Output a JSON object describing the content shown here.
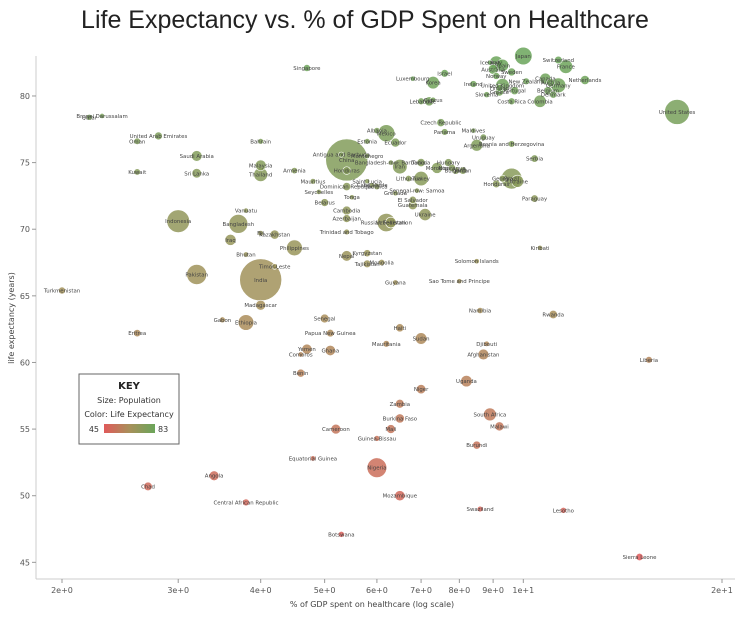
{
  "chart_data": {
    "type": "scatter",
    "title": "Life Expectancy vs. % of GDP Spent on Healthcare",
    "xlabel": "% of GDP spent on healthcare (log scale)",
    "ylabel": "life expectancy (years)",
    "xscale": "log",
    "xlim": [
      2,
      20
    ],
    "ylim": [
      44.5,
      83
    ],
    "x_ticks": [
      {
        "v": 2,
        "label": "2e+0"
      },
      {
        "v": 3,
        "label": "3e+0"
      },
      {
        "v": 4,
        "label": "4e+0"
      },
      {
        "v": 5,
        "label": "5e+0"
      },
      {
        "v": 6,
        "label": "6e+0"
      },
      {
        "v": 7,
        "label": "7e+0"
      },
      {
        "v": 8,
        "label": "8e+0"
      },
      {
        "v": 9,
        "label": "9e+0"
      },
      {
        "v": 10,
        "label": "1e+1"
      },
      {
        "v": 20,
        "label": "2e+1"
      }
    ],
    "y_ticks": [
      45,
      50,
      55,
      60,
      65,
      70,
      75,
      80
    ],
    "grid": false,
    "key": {
      "title": "KEY",
      "size_text": "Size: Population",
      "color_text": "Color: Life Expectancy",
      "min_label": "45",
      "max_label": "83",
      "color_low": "#e05a5a",
      "color_high": "#6aa55a"
    },
    "colors": {
      "low": "#e05a5a",
      "mid": "#a8905a",
      "high": "#6aa55a"
    },
    "points": [
      {
        "label": "Japan",
        "x": 10.0,
        "y": 83.0,
        "pop": 128
      },
      {
        "label": "Switzerland",
        "x": 11.3,
        "y": 82.7,
        "pop": 8
      },
      {
        "label": "Italy",
        "x": 9.1,
        "y": 82.5,
        "pop": 60
      },
      {
        "label": "Spain",
        "x": 9.3,
        "y": 82.3,
        "pop": 47
      },
      {
        "label": "Iceland",
        "x": 8.9,
        "y": 82.5,
        "pop": 0.3
      },
      {
        "label": "France",
        "x": 11.6,
        "y": 82.2,
        "pop": 65
      },
      {
        "label": "Singapore",
        "x": 4.7,
        "y": 82.1,
        "pop": 5
      },
      {
        "label": "Australia",
        "x": 9.0,
        "y": 82.0,
        "pop": 22
      },
      {
        "label": "Sweden",
        "x": 9.6,
        "y": 81.8,
        "pop": 9.5
      },
      {
        "label": "Israel",
        "x": 7.6,
        "y": 81.7,
        "pop": 8
      },
      {
        "label": "Norway",
        "x": 9.1,
        "y": 81.5,
        "pop": 5
      },
      {
        "label": "Canada",
        "x": 10.8,
        "y": 81.3,
        "pop": 34
      },
      {
        "label": "Netherlands",
        "x": 12.4,
        "y": 81.2,
        "pop": 17
      },
      {
        "label": "Luxembourg",
        "x": 6.8,
        "y": 81.3,
        "pop": 0.5
      },
      {
        "label": "Austria",
        "x": 11.0,
        "y": 81.0,
        "pop": 8.4
      },
      {
        "label": "New Zealand",
        "x": 10.1,
        "y": 81.1,
        "pop": 4.4
      },
      {
        "label": "Korea",
        "x": 7.3,
        "y": 81.0,
        "pop": 50
      },
      {
        "label": "Ireland",
        "x": 8.4,
        "y": 80.9,
        "pop": 4.6
      },
      {
        "label": "Germany",
        "x": 11.3,
        "y": 80.8,
        "pop": 81
      },
      {
        "label": "United Kingdom",
        "x": 9.3,
        "y": 80.8,
        "pop": 63
      },
      {
        "label": "Finland",
        "x": 9.2,
        "y": 80.6,
        "pop": 5.4
      },
      {
        "label": "Portugal",
        "x": 9.7,
        "y": 80.4,
        "pop": 10.5
      },
      {
        "label": "Belgium",
        "x": 10.9,
        "y": 80.4,
        "pop": 11
      },
      {
        "label": "Greece",
        "x": 9.2,
        "y": 80.3,
        "pop": 11
      },
      {
        "label": "Slovenia",
        "x": 8.8,
        "y": 80.1,
        "pop": 2
      },
      {
        "label": "Denmark",
        "x": 11.1,
        "y": 80.1,
        "pop": 5.6
      },
      {
        "label": "Cyprus",
        "x": 7.3,
        "y": 79.7,
        "pop": 1.1
      },
      {
        "label": "Lebanon",
        "x": 7.0,
        "y": 79.6,
        "pop": 4.4
      },
      {
        "label": "Chile",
        "x": 7.2,
        "y": 79.6,
        "pop": 17
      },
      {
        "label": "Costa Rica",
        "x": 9.6,
        "y": 79.6,
        "pop": 4.8
      },
      {
        "label": "Colombia",
        "x": 10.6,
        "y": 79.6,
        "pop": 47
      },
      {
        "label": "United States",
        "x": 17.1,
        "y": 78.8,
        "pop": 316
      },
      {
        "label": "Brunei Darussalam",
        "x": 2.3,
        "y": 78.5,
        "pop": 0.4
      },
      {
        "label": "Czech Republic",
        "x": 7.5,
        "y": 78.0,
        "pop": 10.5
      },
      {
        "label": "Qatar",
        "x": 2.2,
        "y": 78.4,
        "pop": 2
      },
      {
        "label": "Panama",
        "x": 7.6,
        "y": 77.3,
        "pop": 3.9
      },
      {
        "label": "Maldives",
        "x": 8.4,
        "y": 77.4,
        "pop": 0.3
      },
      {
        "label": "Albania",
        "x": 6.0,
        "y": 77.4,
        "pop": 2.8
      },
      {
        "label": "Mexico",
        "x": 6.2,
        "y": 77.2,
        "pop": 120
      },
      {
        "label": "Uruguay",
        "x": 8.7,
        "y": 76.9,
        "pop": 3.4
      },
      {
        "label": "Ecuador",
        "x": 6.4,
        "y": 76.5,
        "pop": 15.5
      },
      {
        "label": "Estonia",
        "x": 5.8,
        "y": 76.6,
        "pop": 1.3
      },
      {
        "label": "United Arab Emirates",
        "x": 2.8,
        "y": 77.0,
        "pop": 9
      },
      {
        "label": "Oman",
        "x": 2.6,
        "y": 76.6,
        "pop": 3.6
      },
      {
        "label": "Bahrain",
        "x": 4.0,
        "y": 76.6,
        "pop": 1.3
      },
      {
        "label": "Argentina",
        "x": 8.5,
        "y": 76.3,
        "pop": 41
      },
      {
        "label": "Bosnia and Herzegovina",
        "x": 9.6,
        "y": 76.4,
        "pop": 3.8
      },
      {
        "label": "Antigua and Barbuda",
        "x": 5.3,
        "y": 75.6,
        "pop": 0.1
      },
      {
        "label": "Montenegro",
        "x": 5.8,
        "y": 75.5,
        "pop": 0.6
      },
      {
        "label": "China",
        "x": 5.4,
        "y": 75.2,
        "pop": 1357
      },
      {
        "label": "Saudi Arabia",
        "x": 3.2,
        "y": 75.5,
        "pop": 29
      },
      {
        "label": "Serbia",
        "x": 10.4,
        "y": 75.3,
        "pop": 7.2
      },
      {
        "label": "Bangladesh-row: Barbados",
        "x": 6.3,
        "y": 75.0,
        "pop": 0.3
      },
      {
        "label": "Tunisia",
        "x": 7.0,
        "y": 75.0,
        "pop": 10.9
      },
      {
        "label": "Hungary",
        "x": 7.7,
        "y": 75.0,
        "pop": 9.9
      },
      {
        "label": "Malaysia",
        "x": 4.0,
        "y": 74.8,
        "pop": 29.7
      },
      {
        "label": "Iran",
        "x": 6.5,
        "y": 74.7,
        "pop": 77
      },
      {
        "label": "Morocco",
        "x": 7.4,
        "y": 74.6,
        "pop": 33
      },
      {
        "label": "Nicaragua",
        "x": 7.8,
        "y": 74.6,
        "pop": 6
      },
      {
        "label": "Bulgaria",
        "x": 7.9,
        "y": 74.4,
        "pop": 7.3
      },
      {
        "label": "Jordan",
        "x": 8.1,
        "y": 74.4,
        "pop": 6.5
      },
      {
        "label": "Armenia",
        "x": 4.5,
        "y": 74.4,
        "pop": 3
      },
      {
        "label": "Honduras",
        "x": 5.4,
        "y": 74.4,
        "pop": 8
      },
      {
        "label": "Kuwait",
        "x": 2.6,
        "y": 74.3,
        "pop": 3.4
      },
      {
        "label": "Sri Lanka",
        "x": 3.2,
        "y": 74.2,
        "pop": 20
      },
      {
        "label": "Thailand",
        "x": 4.0,
        "y": 74.1,
        "pop": 67
      },
      {
        "label": "Lithuania",
        "x": 6.7,
        "y": 73.8,
        "pop": 3
      },
      {
        "label": "Turkey",
        "x": 7.0,
        "y": 73.8,
        "pop": 75
      },
      {
        "label": "Georgia",
        "x": 9.3,
        "y": 73.8,
        "pop": 4.5
      },
      {
        "label": "Brazil",
        "x": 9.6,
        "y": 73.8,
        "pop": 200
      },
      {
        "label": "Ukraine",
        "x": 9.8,
        "y": 73.6,
        "pop": 45
      },
      {
        "label": "Honduras",
        "x": 9.1,
        "y": 73.4,
        "pop": 8
      },
      {
        "label": "Mauritius",
        "x": 4.8,
        "y": 73.6,
        "pop": 1.3
      },
      {
        "label": "Saint Lucia",
        "x": 5.8,
        "y": 73.6,
        "pop": 0.2
      },
      {
        "label": "Cabo Verde",
        "x": 5.9,
        "y": 73.3,
        "pop": 0.5
      },
      {
        "label": "Dominican Republic",
        "x": 5.4,
        "y": 73.2,
        "pop": 10.4
      },
      {
        "label": "Jamaica",
        "x": 6.0,
        "y": 73.2,
        "pop": 2.7
      },
      {
        "label": "Seychelles",
        "x": 4.9,
        "y": 72.8,
        "pop": 0.1
      },
      {
        "label": "Senegal-row: Samoa",
        "x": 6.9,
        "y": 72.9,
        "pop": 0.2
      },
      {
        "label": "Grenada",
        "x": 6.4,
        "y": 72.7,
        "pop": 0.1
      },
      {
        "label": "Tonga",
        "x": 5.5,
        "y": 72.4,
        "pop": 0.1
      },
      {
        "label": "Paraguay",
        "x": 10.4,
        "y": 72.3,
        "pop": 6.8
      },
      {
        "label": "Belarus",
        "x": 5.0,
        "y": 72.0,
        "pop": 9.4
      },
      {
        "label": "El Salvador",
        "x": 6.8,
        "y": 72.2,
        "pop": 6.3
      },
      {
        "label": "Guatemala",
        "x": 6.8,
        "y": 71.8,
        "pop": 15.5
      },
      {
        "label": "Vanuatu",
        "x": 3.8,
        "y": 71.4,
        "pop": 0.3
      },
      {
        "label": "Cambodia",
        "x": 5.4,
        "y": 71.4,
        "pop": 15
      },
      {
        "label": "Ukraine",
        "x": 7.1,
        "y": 71.1,
        "pop": 45
      },
      {
        "label": "Indonesia",
        "x": 3.0,
        "y": 70.6,
        "pop": 250
      },
      {
        "label": "Bangladesh",
        "x": 3.7,
        "y": 70.4,
        "pop": 157
      },
      {
        "label": "Azerbaijan",
        "x": 5.4,
        "y": 70.8,
        "pop": 9.4
      },
      {
        "label": "Russian Federation",
        "x": 6.2,
        "y": 70.5,
        "pop": 143
      },
      {
        "label": "Uzbekistan",
        "x": 6.3,
        "y": 70.5,
        "pop": 30
      },
      {
        "label": "Trinidad and Tobago",
        "x": 5.4,
        "y": 69.8,
        "pop": 1.3
      },
      {
        "label": "Fiji",
        "x": 4.0,
        "y": 69.7,
        "pop": 0.9
      },
      {
        "label": "Kazakhstan",
        "x": 4.2,
        "y": 69.6,
        "pop": 17
      },
      {
        "label": "Iraq",
        "x": 3.6,
        "y": 69.2,
        "pop": 33
      },
      {
        "label": "Philippines",
        "x": 4.5,
        "y": 68.6,
        "pop": 98
      },
      {
        "label": "Kiribati",
        "x": 10.6,
        "y": 68.6,
        "pop": 0.1
      },
      {
        "label": "Bhutan",
        "x": 3.8,
        "y": 68.1,
        "pop": 0.8
      },
      {
        "label": "Nepal",
        "x": 5.4,
        "y": 68.0,
        "pop": 28
      },
      {
        "label": "Kyrgyzstan",
        "x": 5.8,
        "y": 68.2,
        "pop": 5.7
      },
      {
        "label": "Solomon Islands",
        "x": 8.5,
        "y": 67.6,
        "pop": 0.6
      },
      {
        "label": "Tajikistan",
        "x": 5.8,
        "y": 67.4,
        "pop": 8.2
      },
      {
        "label": "Mongolia",
        "x": 6.1,
        "y": 67.5,
        "pop": 2.8
      },
      {
        "label": "Timor-Leste",
        "x": 4.2,
        "y": 67.2,
        "pop": 1.1
      },
      {
        "label": "Pakistan",
        "x": 3.2,
        "y": 66.6,
        "pop": 182
      },
      {
        "label": "India",
        "x": 4.0,
        "y": 66.2,
        "pop": 1252
      },
      {
        "label": "Guyana",
        "x": 6.4,
        "y": 66.0,
        "pop": 0.8
      },
      {
        "label": "Sao Tome and Principe",
        "x": 8.0,
        "y": 66.1,
        "pop": 0.2
      },
      {
        "label": "Turkmenistan",
        "x": 2.0,
        "y": 65.4,
        "pop": 5.2
      },
      {
        "label": "Madagascar",
        "x": 4.0,
        "y": 64.3,
        "pop": 23
      },
      {
        "label": "Namibia",
        "x": 8.6,
        "y": 63.9,
        "pop": 2.3
      },
      {
        "label": "Rwanda",
        "x": 11.1,
        "y": 63.6,
        "pop": 11.8
      },
      {
        "label": "Gabon",
        "x": 3.5,
        "y": 63.2,
        "pop": 1.7
      },
      {
        "label": "Ethiopia",
        "x": 3.8,
        "y": 63.0,
        "pop": 94
      },
      {
        "label": "Senegal",
        "x": 5.0,
        "y": 63.3,
        "pop": 14
      },
      {
        "label": "Haiti",
        "x": 6.5,
        "y": 62.6,
        "pop": 10.3
      },
      {
        "label": "Eritrea",
        "x": 2.6,
        "y": 62.2,
        "pop": 6.3
      },
      {
        "label": "Papua New Guinea",
        "x": 5.1,
        "y": 62.2,
        "pop": 7.3
      },
      {
        "label": "Sudan",
        "x": 7.0,
        "y": 61.8,
        "pop": 38
      },
      {
        "label": "Mauritania",
        "x": 6.2,
        "y": 61.4,
        "pop": 3.9
      },
      {
        "label": "Djibouti",
        "x": 8.8,
        "y": 61.4,
        "pop": 0.9
      },
      {
        "label": "Yemen",
        "x": 4.7,
        "y": 61.0,
        "pop": 24
      },
      {
        "label": "Ghana",
        "x": 5.1,
        "y": 60.9,
        "pop": 26
      },
      {
        "label": "Comoros",
        "x": 4.6,
        "y": 60.6,
        "pop": 0.7
      },
      {
        "label": "Afghanistan",
        "x": 8.7,
        "y": 60.6,
        "pop": 30
      },
      {
        "label": "Liberia",
        "x": 15.5,
        "y": 60.2,
        "pop": 4.3
      },
      {
        "label": "Benin",
        "x": 4.6,
        "y": 59.2,
        "pop": 10.3
      },
      {
        "label": "Uganda",
        "x": 8.2,
        "y": 58.6,
        "pop": 37
      },
      {
        "label": "Niger",
        "x": 7.0,
        "y": 58.0,
        "pop": 17.8
      },
      {
        "label": "Zambia",
        "x": 6.5,
        "y": 56.9,
        "pop": 14.5
      },
      {
        "label": "South Africa",
        "x": 8.9,
        "y": 56.1,
        "pop": 53
      },
      {
        "label": "Burkina Faso",
        "x": 6.5,
        "y": 55.8,
        "pop": 16.9
      },
      {
        "label": "Malawi",
        "x": 9.2,
        "y": 55.2,
        "pop": 16.4
      },
      {
        "label": "Cameroon",
        "x": 5.2,
        "y": 55.0,
        "pop": 22
      },
      {
        "label": "Mali",
        "x": 6.3,
        "y": 55.0,
        "pop": 15.3
      },
      {
        "label": "Guinea-Bissau",
        "x": 6.0,
        "y": 54.3,
        "pop": 1.7
      },
      {
        "label": "Burundi",
        "x": 8.5,
        "y": 53.8,
        "pop": 10.2
      },
      {
        "label": "Equatorial Guinea",
        "x": 4.8,
        "y": 52.8,
        "pop": 0.8
      },
      {
        "label": "Nigeria",
        "x": 6.0,
        "y": 52.1,
        "pop": 174
      },
      {
        "label": "Angola",
        "x": 3.4,
        "y": 51.5,
        "pop": 21.5
      },
      {
        "label": "Chad",
        "x": 2.7,
        "y": 50.7,
        "pop": 12.8
      },
      {
        "label": "Mozambique",
        "x": 6.5,
        "y": 50.0,
        "pop": 25.8
      },
      {
        "label": "Central African Republic",
        "x": 3.8,
        "y": 49.5,
        "pop": 4.6
      },
      {
        "label": "Swaziland",
        "x": 8.6,
        "y": 49.0,
        "pop": 1.2
      },
      {
        "label": "Lesotho",
        "x": 11.5,
        "y": 48.9,
        "pop": 2.1
      },
      {
        "label": "Botswana",
        "x": 5.3,
        "y": 47.1,
        "pop": 2
      },
      {
        "label": "Sierra Leone",
        "x": 15.0,
        "y": 45.4,
        "pop": 6.1
      }
    ]
  }
}
